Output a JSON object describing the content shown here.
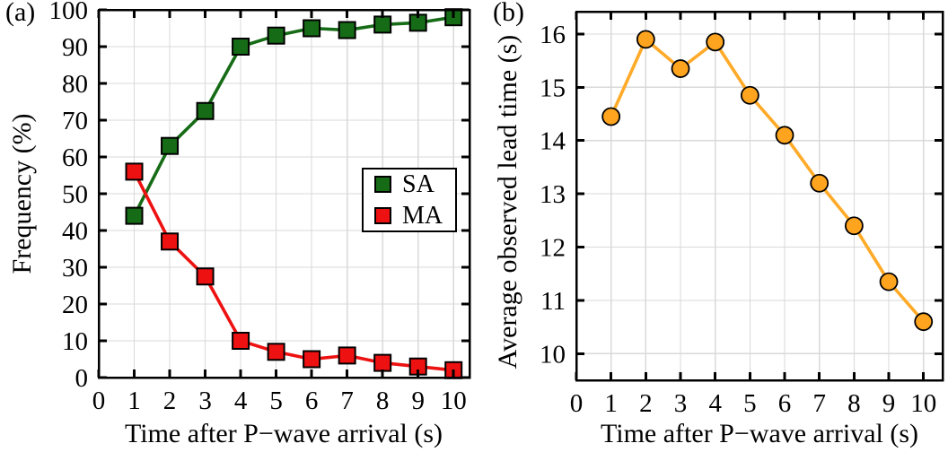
{
  "figure": {
    "background": "#ffffff",
    "grid_color": "#d9d9d9",
    "axis_color": "#000000"
  },
  "chart_data": [
    {
      "id": "a",
      "type": "line",
      "tag": "(a)",
      "xlabel": "Time after P−wave arrival (s)",
      "ylabel": "Frequency (%)",
      "xlim": [
        0,
        10.45
      ],
      "ylim": [
        0,
        100
      ],
      "xticks": [
        0,
        1,
        2,
        3,
        4,
        5,
        6,
        7,
        8,
        9,
        10
      ],
      "yticks": [
        0,
        10,
        20,
        30,
        40,
        50,
        60,
        70,
        80,
        90,
        100
      ],
      "grid": true,
      "legend_position": "inside-right",
      "x": [
        1,
        2,
        3,
        4,
        5,
        6,
        7,
        8,
        9,
        10
      ],
      "series": [
        {
          "name": "SA",
          "color": "#166b16",
          "marker": "square",
          "marker_edge": "#000000",
          "values": [
            44,
            63,
            72.5,
            90,
            93,
            95,
            94.5,
            96,
            96.5,
            98
          ]
        },
        {
          "name": "MA",
          "color": "#ee1111",
          "marker": "square",
          "marker_edge": "#000000",
          "values": [
            56,
            37,
            27.5,
            10,
            7,
            5,
            6,
            4,
            3,
            2
          ]
        }
      ]
    },
    {
      "id": "b",
      "type": "line",
      "tag": "(b)",
      "xlabel": "Time after P−wave arrival (s)",
      "ylabel": "Average observed lead time (s)",
      "xlim": [
        0,
        10.55
      ],
      "ylim": [
        9.5,
        16.42
      ],
      "xticks": [
        0,
        1,
        2,
        3,
        4,
        5,
        6,
        7,
        8,
        9,
        10
      ],
      "yticks": [
        10,
        11,
        12,
        13,
        14,
        15,
        16
      ],
      "grid": true,
      "x": [
        1,
        2,
        3,
        4,
        5,
        6,
        7,
        8,
        9,
        10
      ],
      "series": [
        {
          "name": "Average observed lead time",
          "color": "#ffa41e",
          "line_color": "#ffaa28",
          "marker": "circle",
          "marker_edge": "#000000",
          "values": [
            14.45,
            15.9,
            15.35,
            15.85,
            14.85,
            14.1,
            13.2,
            12.4,
            11.35,
            10.6
          ]
        }
      ]
    }
  ]
}
